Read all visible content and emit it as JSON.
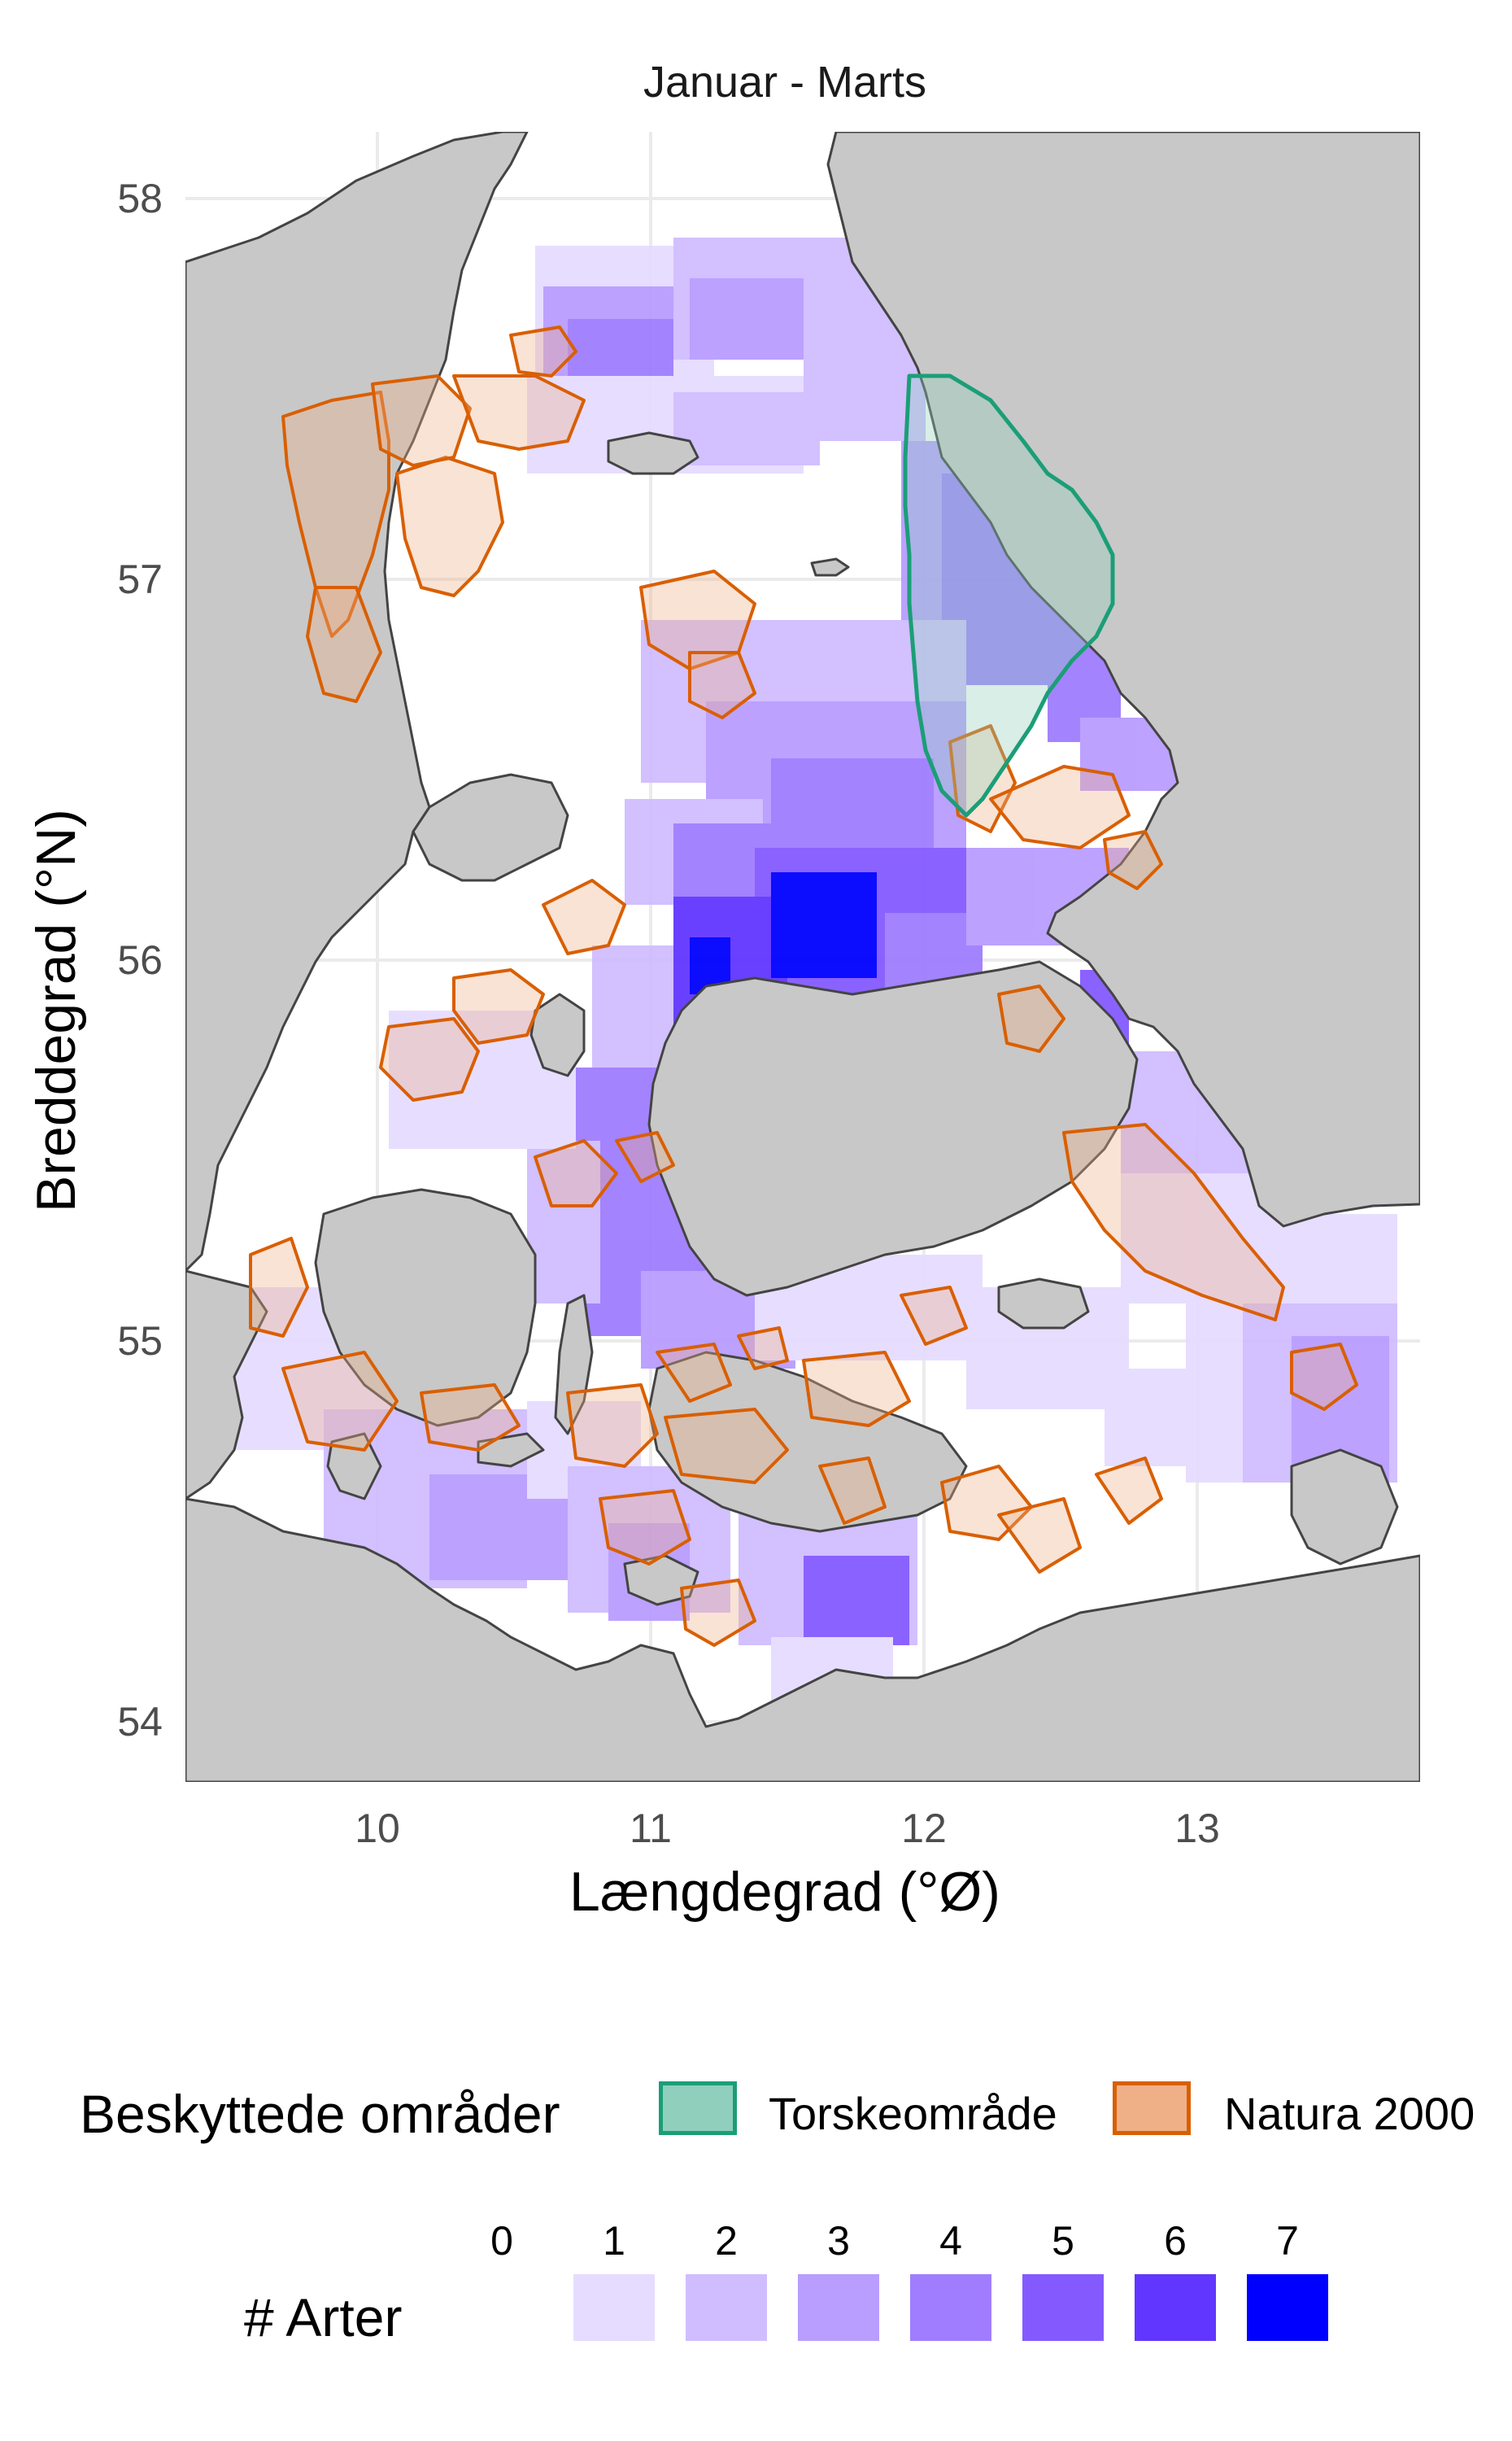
{
  "title": "Januar - Marts",
  "axes": {
    "x_label": "Længdegrad (°Ø)",
    "y_label": "Breddegrad (°N)",
    "x_ticks": [
      "10",
      "11",
      "12",
      "13"
    ],
    "y_ticks": [
      "58",
      "57",
      "56",
      "55",
      "54"
    ]
  },
  "legend_protected": {
    "title": "Beskyttede områder",
    "items": [
      {
        "label": "Torskeområde",
        "fill": "#8fcfbb",
        "stroke": "#1b9e77"
      },
      {
        "label": "Natura 2000",
        "fill": "#efb088",
        "stroke": "#d95f02"
      }
    ]
  },
  "legend_species": {
    "title": "# Arter",
    "levels": [
      {
        "label": "0",
        "color": "#ffffff"
      },
      {
        "label": "1",
        "color": "#e6dcff"
      },
      {
        "label": "2",
        "color": "#d0bdff"
      },
      {
        "label": "3",
        "color": "#b99dff"
      },
      {
        "label": "4",
        "color": "#a07dff"
      },
      {
        "label": "5",
        "color": "#845aff"
      },
      {
        "label": "6",
        "color": "#6136ff"
      },
      {
        "label": "7",
        "color": "#0000ff"
      }
    ]
  },
  "colors": {
    "land": "#c8c8c8",
    "coast": "#444444",
    "grid": "#ebebeb"
  }
}
